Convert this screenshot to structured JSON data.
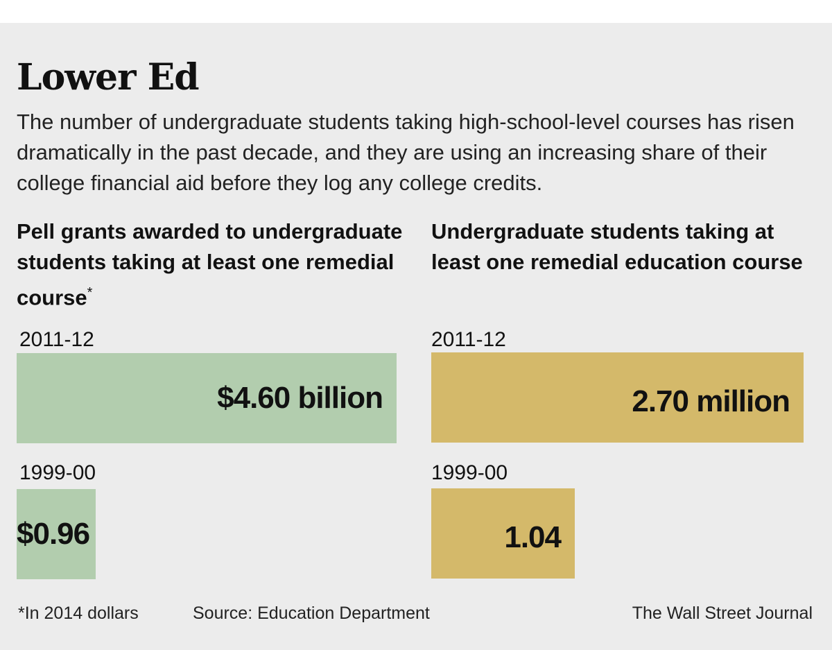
{
  "title": "Lower Ed",
  "subtitle": "The number of undergraduate students taking high-school-level courses has risen dramatically in the past decade, and they are using an increasing share of their college financial aid before they log any college credits.",
  "colors": {
    "pell_bar": "#b2cdae",
    "students_bar": "#d4b96a",
    "background": "#ececec"
  },
  "chart_data": [
    {
      "type": "bar",
      "title": "Pell grants awarded to undergraduate students taking at least one remedial course",
      "title_marker": "*",
      "orientation": "horizontal",
      "categories": [
        "2011-12",
        "1999-00"
      ],
      "values": [
        4.6,
        0.96
      ],
      "value_labels": [
        "$4.60 billion",
        "$0.96"
      ],
      "unit": "billion dollars",
      "xlim": [
        0,
        4.6
      ],
      "color": "#b2cdae"
    },
    {
      "type": "bar",
      "title": "Undergraduate students taking at least one remedial education course",
      "orientation": "horizontal",
      "categories": [
        "2011-12",
        "1999-00"
      ],
      "values": [
        2.7,
        1.04
      ],
      "value_labels": [
        "2.70 million",
        "1.04"
      ],
      "unit": "million students",
      "xlim": [
        0,
        2.7
      ],
      "color": "#d4b96a"
    }
  ],
  "footer": {
    "note": "*In 2014 dollars",
    "source": "Source: Education Department",
    "credit": "The Wall Street Journal"
  }
}
